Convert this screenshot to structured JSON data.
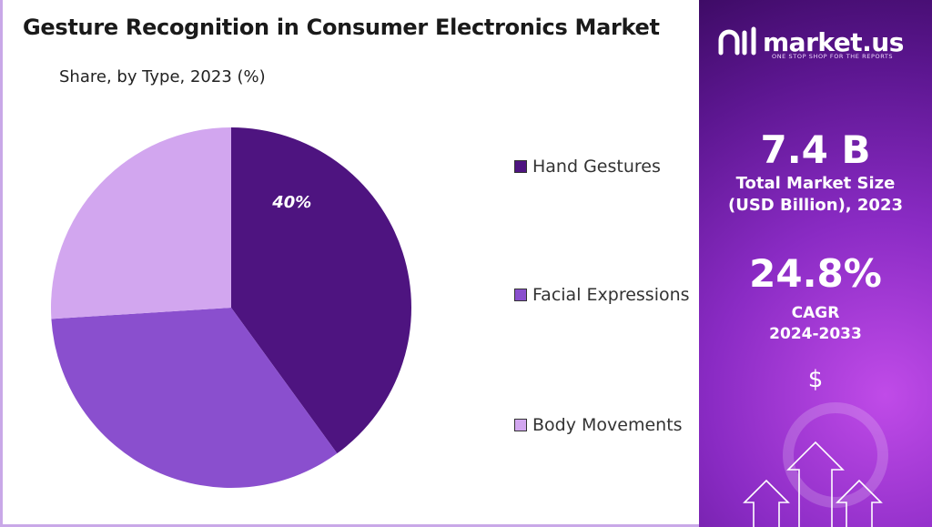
{
  "chart_data": {
    "type": "pie",
    "title": "Gesture Recognition in Consumer Electronics Market",
    "subtitle": "Share, by Type, 2023 (%)",
    "categories": [
      "Hand Gestures",
      "Facial Expressions",
      "Body Movements"
    ],
    "values": [
      40,
      34,
      26
    ],
    "colors": [
      "#4e1480",
      "#8a4fce",
      "#d2a6ef"
    ],
    "data_labels": [
      "40%",
      "",
      ""
    ],
    "legend_position": "right"
  },
  "sidebar": {
    "brand": "market.us",
    "tagline": "ONE STOP SHOP FOR THE REPORTS",
    "market_size_value": "7.4 B",
    "market_size_label_line1": "Total Market Size",
    "market_size_label_line2": "(USD Billion), 2023",
    "cagr_value": "24.8%",
    "cagr_label_line1": "CAGR",
    "cagr_label_line2": "2024-2033",
    "currency_symbol": "$"
  }
}
